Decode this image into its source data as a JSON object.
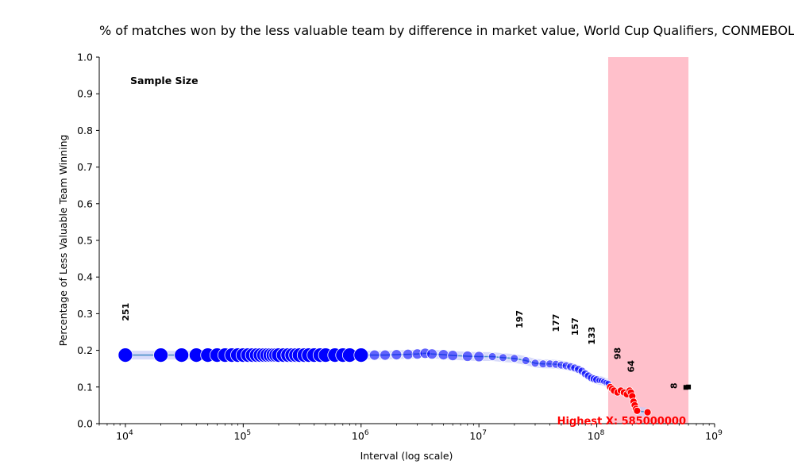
{
  "chart_data": {
    "type": "scatter",
    "title": "% of matches won by the less valuable team by difference in market value, World Cup Qualifiers, CONMEBOL",
    "xlabel": "Interval (log scale)",
    "ylabel": "Percentage of Less Valuable Team Winning",
    "xscale": "log",
    "xlim": [
      6000,
      1000000000
    ],
    "ylim": [
      0,
      1.0
    ],
    "x_ticks": [
      {
        "value": 10000,
        "base": "10",
        "exp": "4"
      },
      {
        "value": 100000,
        "base": "10",
        "exp": "5"
      },
      {
        "value": 1000000,
        "base": "10",
        "exp": "6"
      },
      {
        "value": 10000000,
        "base": "10",
        "exp": "7"
      },
      {
        "value": 100000000,
        "base": "10",
        "exp": "8"
      },
      {
        "value": 1000000000,
        "base": "10",
        "exp": "9"
      }
    ],
    "y_ticks": [
      "0.0",
      "0.1",
      "0.2",
      "0.3",
      "0.4",
      "0.5",
      "0.6",
      "0.7",
      "0.8",
      "0.9",
      "1.0"
    ],
    "highlight_band": {
      "x_start": 125000000,
      "x_end": 600000000,
      "color": "#ffc0cb"
    },
    "sample_size_heading": "Sample Size",
    "sample_size_labels": [
      {
        "x": 10000,
        "y": 0.28,
        "text": "251"
      },
      {
        "x": 22000000,
        "y": 0.26,
        "text": "197"
      },
      {
        "x": 45000000,
        "y": 0.25,
        "text": "177"
      },
      {
        "x": 65000000,
        "y": 0.24,
        "text": "157"
      },
      {
        "x": 90000000,
        "y": 0.215,
        "text": "133"
      },
      {
        "x": 150000000,
        "y": 0.175,
        "text": "98"
      },
      {
        "x": 195000000,
        "y": 0.14,
        "text": "64"
      },
      {
        "x": 450000000,
        "y": 0.095,
        "text": "8"
      }
    ],
    "highest_x_label": "Highest X: 585000000",
    "series": [
      {
        "style": "blue-points",
        "color": "#0000ff",
        "points": [
          [
            10000,
            0.187
          ],
          [
            20000,
            0.187
          ],
          [
            30000,
            0.187
          ],
          [
            40000,
            0.187
          ],
          [
            50000,
            0.187
          ],
          [
            60000,
            0.187
          ],
          [
            70000,
            0.187
          ],
          [
            80000,
            0.187
          ],
          [
            90000,
            0.187
          ],
          [
            100000,
            0.187
          ],
          [
            110000,
            0.187
          ],
          [
            120000,
            0.187
          ],
          [
            130000,
            0.187
          ],
          [
            140000,
            0.187
          ],
          [
            150000,
            0.187
          ],
          [
            160000,
            0.187
          ],
          [
            170000,
            0.187
          ],
          [
            180000,
            0.187
          ],
          [
            190000,
            0.187
          ],
          [
            200000,
            0.187
          ],
          [
            220000,
            0.187
          ],
          [
            240000,
            0.187
          ],
          [
            260000,
            0.187
          ],
          [
            280000,
            0.187
          ],
          [
            300000,
            0.187
          ],
          [
            330000,
            0.187
          ],
          [
            360000,
            0.187
          ],
          [
            400000,
            0.187
          ],
          [
            450000,
            0.187
          ],
          [
            500000,
            0.187
          ],
          [
            600000,
            0.187
          ],
          [
            700000,
            0.187
          ],
          [
            800000,
            0.187
          ],
          [
            1000000,
            0.187
          ],
          [
            1300000,
            0.187
          ],
          [
            1600000,
            0.187
          ],
          [
            2000000,
            0.188
          ],
          [
            2500000,
            0.189
          ],
          [
            3000000,
            0.19
          ],
          [
            3500000,
            0.192
          ],
          [
            4000000,
            0.19
          ],
          [
            5000000,
            0.188
          ],
          [
            6000000,
            0.186
          ],
          [
            8000000,
            0.184
          ],
          [
            10000000,
            0.183
          ],
          [
            13000000,
            0.183
          ],
          [
            16000000,
            0.18
          ],
          [
            20000000,
            0.178
          ],
          [
            25000000,
            0.172
          ],
          [
            30000000,
            0.165
          ],
          [
            35000000,
            0.163
          ],
          [
            40000000,
            0.163
          ],
          [
            45000000,
            0.162
          ],
          [
            50000000,
            0.16
          ],
          [
            55000000,
            0.158
          ],
          [
            60000000,
            0.155
          ],
          [
            65000000,
            0.152
          ],
          [
            70000000,
            0.148
          ],
          [
            75000000,
            0.143
          ],
          [
            80000000,
            0.136
          ],
          [
            85000000,
            0.13
          ],
          [
            90000000,
            0.125
          ],
          [
            95000000,
            0.122
          ],
          [
            100000000,
            0.12
          ],
          [
            105000000,
            0.118
          ],
          [
            110000000,
            0.117
          ],
          [
            115000000,
            0.115
          ],
          [
            120000000,
            0.112
          ],
          [
            125000000,
            0.11
          ]
        ]
      },
      {
        "style": "red-points",
        "color": "#ff0000",
        "points": [
          [
            130000000,
            0.1
          ],
          [
            135000000,
            0.095
          ],
          [
            140000000,
            0.09
          ],
          [
            150000000,
            0.085
          ],
          [
            160000000,
            0.09
          ],
          [
            170000000,
            0.085
          ],
          [
            180000000,
            0.08
          ],
          [
            190000000,
            0.09
          ],
          [
            195000000,
            0.085
          ],
          [
            200000000,
            0.075
          ],
          [
            205000000,
            0.06
          ],
          [
            210000000,
            0.05
          ],
          [
            215000000,
            0.04
          ],
          [
            220000000,
            0.035
          ],
          [
            270000000,
            0.031
          ]
        ]
      },
      {
        "style": "black-points",
        "color": "#000000",
        "points": [
          [
            570000000,
            0.099
          ],
          [
            600000000,
            0.1
          ]
        ]
      }
    ]
  }
}
